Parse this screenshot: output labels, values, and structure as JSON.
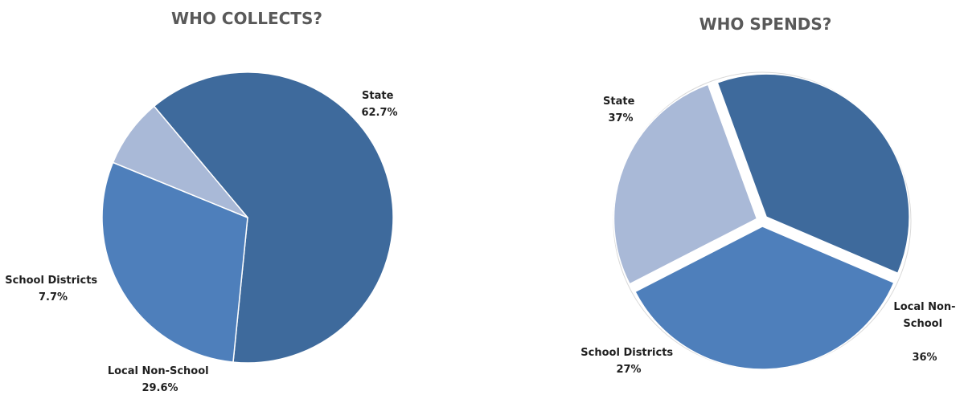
{
  "chart_data": [
    {
      "type": "pie",
      "title": "WHO COLLECTS?",
      "slices": [
        {
          "label": "State",
          "value": 62.7,
          "value_label": "62.7%",
          "color": "#3e6a9c"
        },
        {
          "label": "Local Non-School",
          "value": 29.6,
          "value_label": "29.6%",
          "color": "#4e7fbb"
        },
        {
          "label": "School Districts",
          "value": 7.7,
          "value_label": "7.7%",
          "color": "#a9b9d7"
        }
      ]
    },
    {
      "type": "pie",
      "title": "WHO SPENDS?",
      "exploded": true,
      "slices": [
        {
          "label": "State",
          "value": 37,
          "value_label": "37%",
          "color": "#3e6a9c"
        },
        {
          "label": "Local Non-School",
          "value": 36,
          "value_label": "36%",
          "color": "#4e7fbb"
        },
        {
          "label": "School Districts",
          "value": 27,
          "value_label": "27%",
          "color": "#a9b9d7"
        }
      ]
    }
  ]
}
